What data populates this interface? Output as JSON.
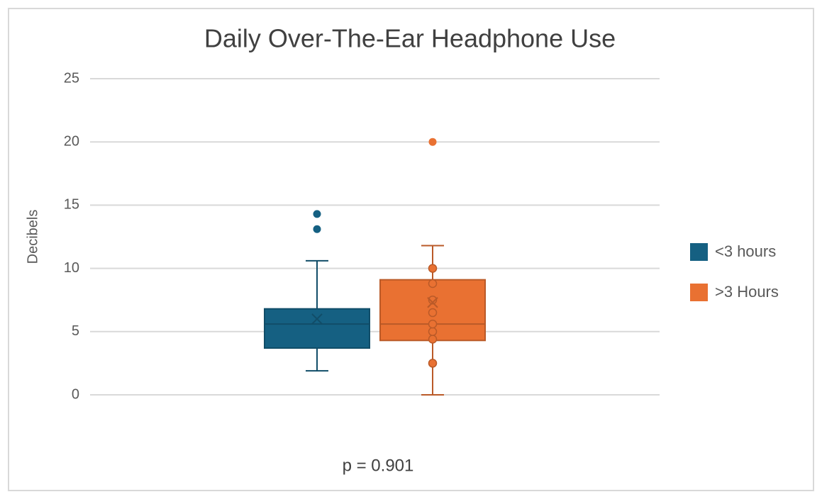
{
  "chart_data": {
    "type": "box",
    "title": "Daily Over-The-Ear Headphone Use",
    "y_label": "Decibels",
    "annotation": "p = 0.901",
    "ylim": [
      0,
      25
    ],
    "yticks": [
      0,
      5,
      10,
      15,
      20,
      25
    ],
    "grid": true,
    "legend": "right",
    "series": [
      {
        "name": "<3 hours",
        "color": "#156082",
        "whisker_low": 1.9,
        "q1": 3.7,
        "median": 5.6,
        "q3": 6.8,
        "whisker_high": 10.6,
        "mean": 6.0,
        "points": [],
        "outliers": [
          13.1,
          14.3
        ]
      },
      {
        "name": ">3 Hours",
        "color": "#e97132",
        "whisker_low": 0,
        "q1": 4.3,
        "median": 5.6,
        "q3": 9.1,
        "whisker_high": 11.8,
        "mean": 7.3,
        "points": [
          2.5,
          4.4,
          5.0,
          5.6,
          6.5,
          7.5,
          8.8,
          10
        ],
        "outliers": [
          20
        ]
      }
    ]
  }
}
